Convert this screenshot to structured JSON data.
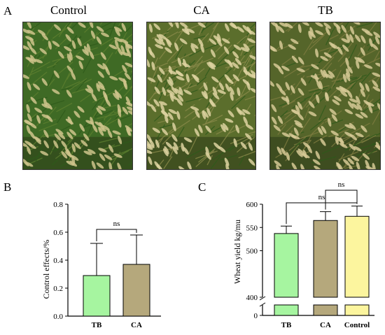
{
  "panels": {
    "a_letter": "A",
    "b_letter": "B",
    "c_letter": "C"
  },
  "photos": [
    {
      "title": "Control",
      "base": "#3f6a25",
      "head": "#cfc48c",
      "tint": "#5d7f2f"
    },
    {
      "title": "CA",
      "base": "#5b6e2c",
      "head": "#ddd2a0",
      "tint": "#8a8a4a"
    },
    {
      "title": "TB",
      "base": "#55652a",
      "head": "#d6c995",
      "tint": "#7f7c40"
    }
  ],
  "chart_data": [
    {
      "type": "bar",
      "categories": [
        "TB",
        "CA"
      ],
      "values": [
        0.29,
        0.37
      ],
      "errors": [
        0.23,
        0.21
      ],
      "colors": [
        "#a6f5a0",
        "#b5a87c"
      ],
      "ylabel": "Control effects/%",
      "yticks": [
        "0.0",
        "0.2",
        "0.4",
        "0.6",
        "0.8"
      ],
      "ylim": [
        0,
        0.8
      ],
      "significance": [
        {
          "pair": [
            "TB",
            "CA"
          ],
          "label": "ns"
        }
      ]
    },
    {
      "type": "bar",
      "categories": [
        "TB",
        "CA",
        "Control"
      ],
      "values": [
        537,
        565,
        574
      ],
      "errors": [
        16,
        19,
        22
      ],
      "colors": [
        "#a6f5a0",
        "#b5a87c",
        "#fcf59e"
      ],
      "ylabel": "Wheat yield kg/mu",
      "yticks_upper": [
        "400",
        "500",
        "550",
        "600"
      ],
      "yticks_lower": [
        "0"
      ],
      "ylim_upper": [
        400,
        600
      ],
      "axis_break": true,
      "significance": [
        {
          "pair": [
            "TB",
            "Control"
          ],
          "label": "ns"
        },
        {
          "pair": [
            "CA",
            "Control"
          ],
          "label": "ns"
        }
      ]
    }
  ]
}
